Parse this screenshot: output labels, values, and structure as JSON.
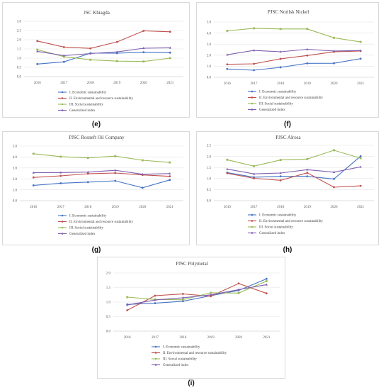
{
  "colors": {
    "economic": "#4472c4",
    "environmental": "#c0504d",
    "social": "#9bbb59",
    "generalized": "#7f5fb0",
    "grid": "#e3e3e3",
    "axis": "#bfbfbf"
  },
  "series_names": [
    "I. Economic sustainability",
    "II. Environmental and resource sustainability",
    "III. Social sustainability",
    "Generalized index"
  ],
  "panel_labels": [
    "(e)",
    "(f)",
    "(g)",
    "(h)",
    "(i)"
  ],
  "chart_data": [
    {
      "type": "line",
      "title": "JSC Khiagda",
      "categories": [
        "2016",
        "2017",
        "2018",
        "2019",
        "2020",
        "2021"
      ],
      "yticks": [
        "0.0",
        "0.5",
        "1.0",
        "1.5",
        "2.0",
        "2.5",
        "3.0"
      ],
      "ylim": [
        0,
        3.0
      ],
      "series": [
        {
          "name": "I. Economic sustainability",
          "values": [
            0.68,
            0.8,
            1.27,
            1.27,
            1.32,
            1.3
          ]
        },
        {
          "name": "II. Environmental and resource sustainability",
          "values": [
            1.93,
            1.6,
            1.53,
            1.88,
            2.48,
            2.43
          ]
        },
        {
          "name": "III. Social sustainability",
          "values": [
            1.46,
            1.08,
            0.91,
            0.84,
            0.82,
            1.0
          ]
        },
        {
          "name": "Generalized index",
          "values": [
            1.37,
            1.14,
            1.25,
            1.34,
            1.54,
            1.56
          ]
        }
      ]
    },
    {
      "type": "line",
      "title": "PJSC Norilsk Nickel",
      "categories": [
        "2016",
        "2017",
        "2018",
        "2019",
        "2020",
        "2021"
      ],
      "yticks": [
        "0.0",
        "1.0",
        "2.0",
        "3.0",
        "4.0",
        "5.0"
      ],
      "ylim": [
        0,
        5.0
      ],
      "series": [
        {
          "name": "I. Economic sustainability",
          "values": [
            0.75,
            0.64,
            0.9,
            1.26,
            1.27,
            1.68
          ]
        },
        {
          "name": "II. Environmental and resource sustainability",
          "values": [
            1.17,
            1.22,
            1.67,
            1.97,
            2.3,
            2.38
          ]
        },
        {
          "name": "III. Social sustainability",
          "values": [
            4.2,
            4.43,
            4.37,
            4.37,
            3.57,
            3.2
          ]
        },
        {
          "name": "Generalized index",
          "values": [
            2.04,
            2.43,
            2.31,
            2.53,
            2.38,
            2.42
          ]
        }
      ]
    },
    {
      "type": "line",
      "title": "PJSC Rosneft Oil Company",
      "categories": [
        "2016",
        "2017",
        "2018",
        "2019",
        "2020",
        "2021"
      ],
      "yticks": [
        "0.0",
        "1.0",
        "2.0",
        "3.0",
        "4.0",
        "5.0"
      ],
      "ylim": [
        0,
        5.0
      ],
      "series": [
        {
          "name": "I. Economic sustainability",
          "values": [
            1.4,
            1.6,
            1.7,
            1.82,
            1.18,
            1.9
          ]
        },
        {
          "name": "II. Environmental and resource sustainability",
          "values": [
            2.13,
            2.27,
            2.47,
            2.53,
            2.36,
            2.23
          ]
        },
        {
          "name": "III. Social sustainability",
          "values": [
            4.3,
            4.03,
            3.92,
            4.08,
            3.7,
            3.5
          ]
        },
        {
          "name": "Generalized index",
          "values": [
            2.56,
            2.58,
            2.62,
            2.78,
            2.42,
            2.48
          ]
        }
      ]
    },
    {
      "type": "line",
      "title": "PJSC Alrosa",
      "categories": [
        "2016",
        "2017",
        "2018",
        "2019",
        "2020",
        "2021"
      ],
      "yticks": [
        "0.0",
        "0.5",
        "1.0",
        "1.5",
        "2.0",
        "2.5"
      ],
      "ylim": [
        0,
        2.5
      ],
      "series": [
        {
          "name": "I. Economic sustainability",
          "values": [
            1.27,
            1.06,
            1.1,
            1.1,
            0.98,
            2.01
          ]
        },
        {
          "name": "II. Environmental and resource sustainability",
          "values": [
            1.24,
            1.01,
            0.92,
            1.26,
            0.61,
            0.67
          ]
        },
        {
          "name": "III. Social sustainability",
          "values": [
            1.85,
            1.56,
            1.84,
            1.88,
            2.28,
            1.92
          ]
        },
        {
          "name": "Generalized index",
          "values": [
            1.43,
            1.21,
            1.25,
            1.4,
            1.29,
            1.53
          ]
        }
      ]
    },
    {
      "type": "line",
      "title": "PJSC Polymetal",
      "categories": [
        "2016",
        "2017",
        "2018",
        "2019",
        "2020",
        "2021"
      ],
      "yticks": [
        "0.0",
        "0.5",
        "1.0",
        "1.5",
        "2.0"
      ],
      "ylim": [
        0,
        2.0
      ],
      "series": [
        {
          "name": "I. Economic sustainability",
          "values": [
            0.92,
            0.96,
            1.03,
            1.22,
            1.4,
            1.8
          ]
        },
        {
          "name": "II. Environmental and resource sustainability",
          "values": [
            0.72,
            1.22,
            1.28,
            1.2,
            1.64,
            1.3
          ]
        },
        {
          "name": "III. Social sustainability",
          "values": [
            1.17,
            1.09,
            1.08,
            1.32,
            1.31,
            1.72
          ]
        },
        {
          "name": "Generalized index",
          "values": [
            0.9,
            1.07,
            1.15,
            1.25,
            1.43,
            1.6
          ]
        }
      ]
    }
  ]
}
